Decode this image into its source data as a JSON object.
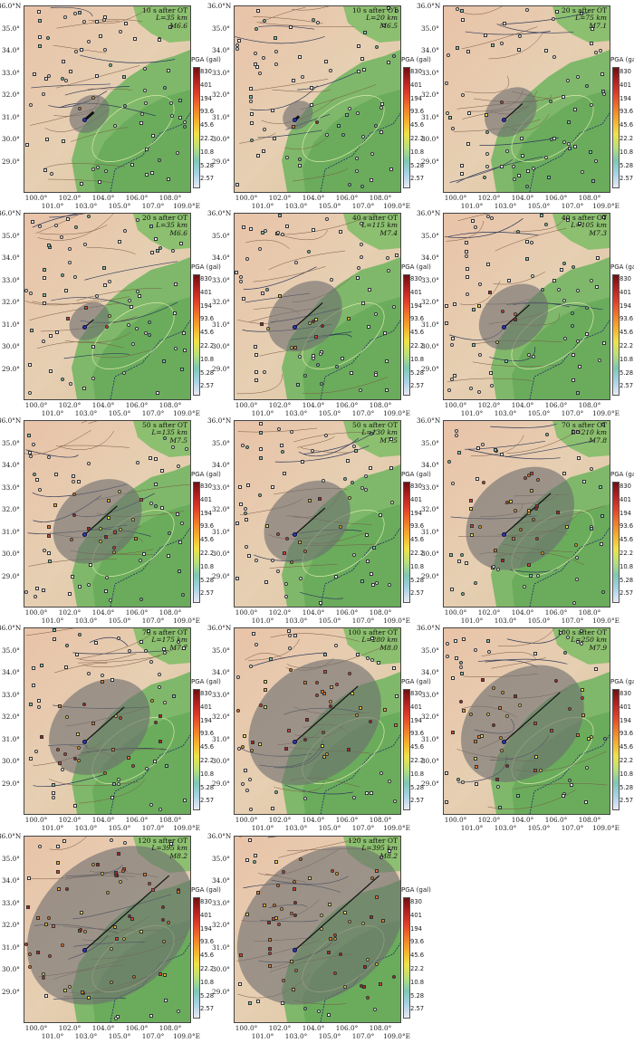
{
  "legend": {
    "title": "PGA (gal)",
    "ticks": [
      "830",
      "401",
      "194",
      "93.6",
      "45.6",
      "22.2",
      "10.8",
      "5.28",
      "2.57"
    ],
    "colors": [
      "#6b1111",
      "#b22222",
      "#e0402a",
      "#f07a2a",
      "#f5b02f",
      "#efe34a",
      "#b9e07a",
      "#7fc7b5",
      "#a9d3e6",
      "#eaeaf4"
    ]
  },
  "axes": {
    "y_labels": [
      "36.0°N",
      "35.0°",
      "34.0°",
      "33.0°",
      "32.0°",
      "31.0°",
      "30.0°",
      "29.0°"
    ],
    "y_labels_plain": [
      "36.0°",
      "35.0°",
      "34.0°",
      "33.0°",
      "32.0°",
      "31.0°",
      "30.0°",
      "29.0°"
    ],
    "x_top": [
      "100.0°",
      "102.0°",
      "104.0°",
      "106.0°",
      "108.0°"
    ],
    "x_bottom": [
      "101.0°",
      "103.0°",
      "105.0°",
      "107.0°",
      "109.0°E"
    ]
  },
  "panels": [
    {
      "time": "10 s after OT",
      "length": "L=35 km",
      "mag": "M6.6"
    },
    {
      "time": "10 s after OT",
      "length": "L=20 km",
      "mag": "M6.5"
    },
    {
      "time": "20 s after OT",
      "length": "L=75 km",
      "mag": "M7.1"
    },
    {
      "time": "20 s after OT",
      "length": "L=35 km",
      "mag": "M6.6"
    },
    {
      "time": "40 s after OT",
      "length": "L=115 km",
      "mag": "M7.4"
    },
    {
      "time": "40 s after OT",
      "length": "L=105 km",
      "mag": "M7.3"
    },
    {
      "time": "50 s after OT",
      "length": "L=135 km",
      "mag": "M7.5"
    },
    {
      "time": "50 s after OT",
      "length": "L=130 km",
      "mag": "M7.5"
    },
    {
      "time": "70 s after OT",
      "length": "L=210 km",
      "mag": "M7.8"
    },
    {
      "time": "70 s after OT",
      "length": "L=175 km",
      "mag": "M7.7"
    },
    {
      "time": "100 s after OT",
      "length": "L=280 km",
      "mag": "M8.0"
    },
    {
      "time": "100 s after OT",
      "length": "L=250 km",
      "mag": "M7.9"
    },
    {
      "time": "120 s after OT",
      "length": "L=395 km",
      "mag": "M8.2"
    },
    {
      "time": "120 s after OT",
      "length": "L=395 km",
      "mag": "M8.2"
    }
  ]
}
